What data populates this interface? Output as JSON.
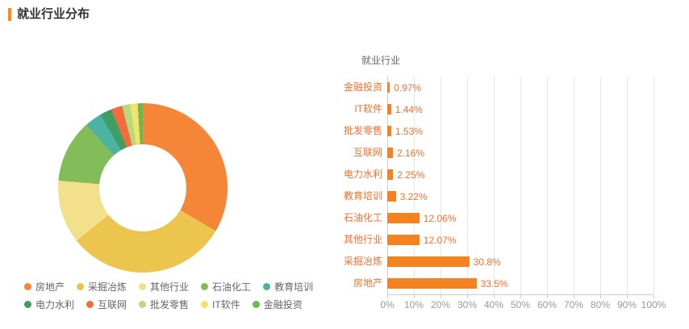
{
  "header": {
    "title": "就业行业分布"
  },
  "colors": {
    "accent": "#ff8a1e",
    "bar": "#f58220",
    "bar_text": "#f0712c",
    "axis_text": "#999999",
    "grid_line": "#e6e6e6",
    "axis_line": "#cccccc",
    "legend_text": "#666666",
    "chart_title_text": "#666666"
  },
  "chart_data": [
    {
      "type": "pie",
      "title": "",
      "shape": "donut",
      "inner_radius_pct": 51,
      "legend_position": "bottom",
      "series": [
        {
          "name": "房地产",
          "value": 33.5,
          "color": "#f58637"
        },
        {
          "name": "采掘冶炼",
          "value": 30.8,
          "color": "#ecc54e"
        },
        {
          "name": "其他行业",
          "value": 12.07,
          "color": "#f2e18a"
        },
        {
          "name": "石油化工",
          "value": 12.06,
          "color": "#83bd59"
        },
        {
          "name": "教育培训",
          "value": 3.22,
          "color": "#4cb2a2"
        },
        {
          "name": "电力水利",
          "value": 2.25,
          "color": "#3f9e63"
        },
        {
          "name": "互联网",
          "value": 2.16,
          "color": "#f06e3d"
        },
        {
          "name": "批发零售",
          "value": 1.53,
          "color": "#b9d97d"
        },
        {
          "name": "IT软件",
          "value": 1.44,
          "color": "#f3e36a"
        },
        {
          "name": "金融投资",
          "value": 0.97,
          "color": "#68bb54"
        }
      ]
    },
    {
      "type": "bar",
      "title": "就业行业",
      "orientation": "horizontal",
      "categories": [
        "金融投资",
        "IT软件",
        "批发零售",
        "互联网",
        "电力水利",
        "教育培训",
        "石油化工",
        "其他行业",
        "采掘冶炼",
        "房地产"
      ],
      "values": [
        0.97,
        1.44,
        1.53,
        2.16,
        2.25,
        3.22,
        12.06,
        12.07,
        30.8,
        33.5
      ],
      "value_labels": [
        "0.97%",
        "1.44%",
        "1.53%",
        "2.16%",
        "2.25%",
        "3.22%",
        "12.06%",
        "12.07%",
        "30.8%",
        "33.5%"
      ],
      "xlim": [
        0,
        100
      ],
      "x_ticks": [
        "0%",
        "10%",
        "20%",
        "30%",
        "40%",
        "50%",
        "60%",
        "70%",
        "80%",
        "90%",
        "100%"
      ],
      "grid": true,
      "legend_position": "none"
    }
  ]
}
